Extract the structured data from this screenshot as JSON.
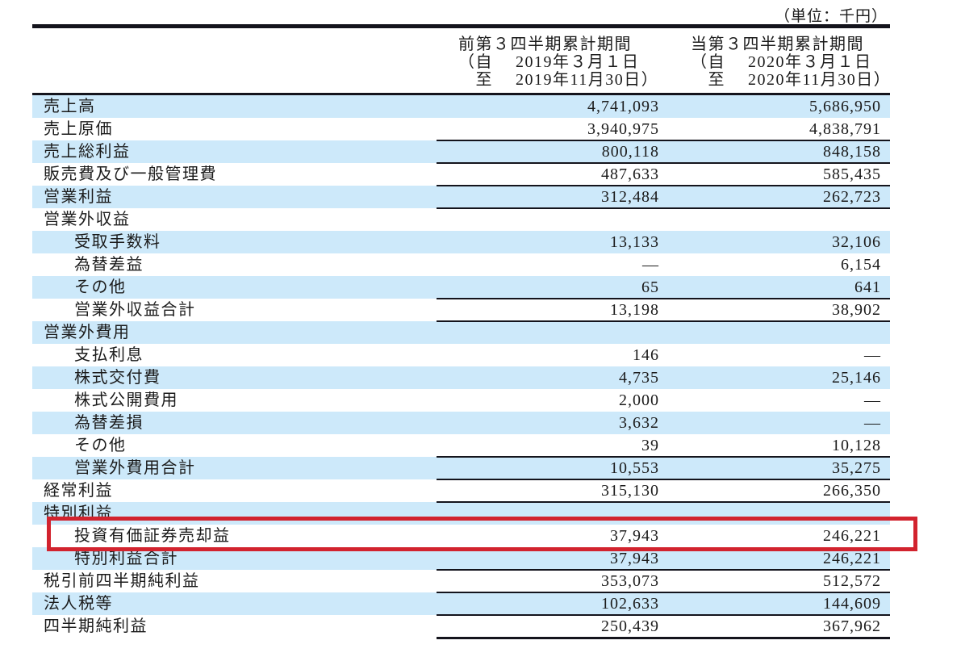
{
  "unit_label": "（単位：千円）",
  "table": {
    "column_headers": {
      "prior": "前第３四半期累計期間\n（自　 2019年３月１日\n　至　 2019年11月30日）",
      "current": "当第３四半期累計期間\n（自　 2020年３月１日\n　至　 2020年11月30日）"
    },
    "rows": [
      {
        "label": "売上高",
        "indent": 0,
        "prior": "4,741,093",
        "current": "5,686,950",
        "sep": false
      },
      {
        "label": "売上原価",
        "indent": 0,
        "prior": "3,940,975",
        "current": "4,838,791",
        "sep": true
      },
      {
        "label": "売上総利益",
        "indent": 0,
        "prior": "800,118",
        "current": "848,158",
        "sep": true
      },
      {
        "label": "販売費及び一般管理費",
        "indent": 0,
        "prior": "487,633",
        "current": "585,435",
        "sep": true
      },
      {
        "label": "営業利益",
        "indent": 0,
        "prior": "312,484",
        "current": "262,723",
        "sep": true
      },
      {
        "label": "営業外収益",
        "indent": 0,
        "prior": "",
        "current": "",
        "sep": false
      },
      {
        "label": "受取手数料",
        "indent": 1,
        "prior": "13,133",
        "current": "32,106",
        "sep": false
      },
      {
        "label": "為替差益",
        "indent": 1,
        "prior": "—",
        "current": "6,154",
        "sep": false
      },
      {
        "label": "その他",
        "indent": 1,
        "prior": "65",
        "current": "641",
        "sep": true
      },
      {
        "label": "営業外収益合計",
        "indent": 1,
        "prior": "13,198",
        "current": "38,902",
        "sep": true
      },
      {
        "label": "営業外費用",
        "indent": 0,
        "prior": "",
        "current": "",
        "sep": false
      },
      {
        "label": "支払利息",
        "indent": 1,
        "prior": "146",
        "current": "—",
        "sep": false
      },
      {
        "label": "株式交付費",
        "indent": 1,
        "prior": "4,735",
        "current": "25,146",
        "sep": false
      },
      {
        "label": "株式公開費用",
        "indent": 1,
        "prior": "2,000",
        "current": "—",
        "sep": false
      },
      {
        "label": "為替差損",
        "indent": 1,
        "prior": "3,632",
        "current": "—",
        "sep": false
      },
      {
        "label": "その他",
        "indent": 1,
        "prior": "39",
        "current": "10,128",
        "sep": true
      },
      {
        "label": "営業外費用合計",
        "indent": 1,
        "prior": "10,553",
        "current": "35,275",
        "sep": true
      },
      {
        "label": "経常利益",
        "indent": 0,
        "prior": "315,130",
        "current": "266,350",
        "sep": true
      },
      {
        "label": "特別利益",
        "indent": 0,
        "prior": "",
        "current": "",
        "sep": false
      },
      {
        "label": "投資有価証券売却益",
        "indent": 1,
        "prior": "37,943",
        "current": "246,221",
        "sep": false,
        "highlighted": true
      },
      {
        "label": "特別利益合計",
        "indent": 1,
        "prior": "37,943",
        "current": "246,221",
        "sep": true
      },
      {
        "label": "税引前四半期純利益",
        "indent": 0,
        "prior": "353,073",
        "current": "512,572",
        "sep": true
      },
      {
        "label": "法人税等",
        "indent": 0,
        "prior": "102,633",
        "current": "144,609",
        "sep": true
      },
      {
        "label": "四半期純利益",
        "indent": 0,
        "prior": "250,439",
        "current": "367,962",
        "sep": true
      }
    ]
  },
  "colors": {
    "row_stripe_blue": "#cde9fa",
    "rule_line": "#14141c",
    "highlight_border_red": "#d2232e",
    "text": "#1b1b1b"
  }
}
